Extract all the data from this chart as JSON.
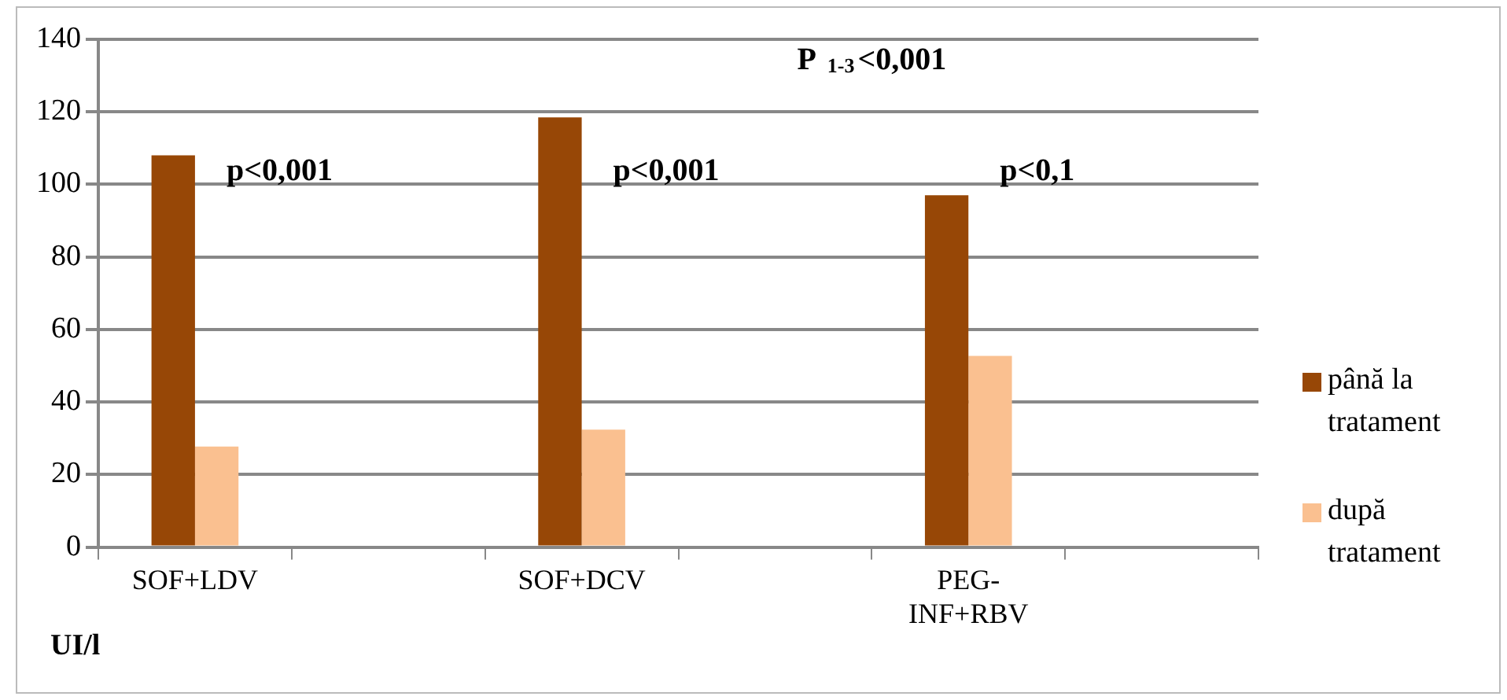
{
  "chart_data": {
    "type": "bar",
    "ylabel": "UI/l",
    "categories": [
      "SOF+LDV",
      null,
      "SOF+DCV",
      null,
      "PEG-INF+RBV",
      null
    ],
    "series": [
      {
        "name": "până la tratament",
        "color": "#974706",
        "values": [
          108,
          null,
          118.5,
          null,
          97,
          null
        ]
      },
      {
        "name": "după tratament",
        "color": "#fac090",
        "values": [
          27.7,
          null,
          32.4,
          null,
          52.7,
          null
        ]
      }
    ],
    "ylim": [
      0,
      140
    ],
    "yticks": [
      0,
      20,
      40,
      60,
      80,
      100,
      120,
      140
    ],
    "grid": "y",
    "legend": "right",
    "annotations": [
      "p<0,001",
      "p<0,001",
      "p<0,1",
      "P $_{1-3}$<0,001"
    ]
  }
}
